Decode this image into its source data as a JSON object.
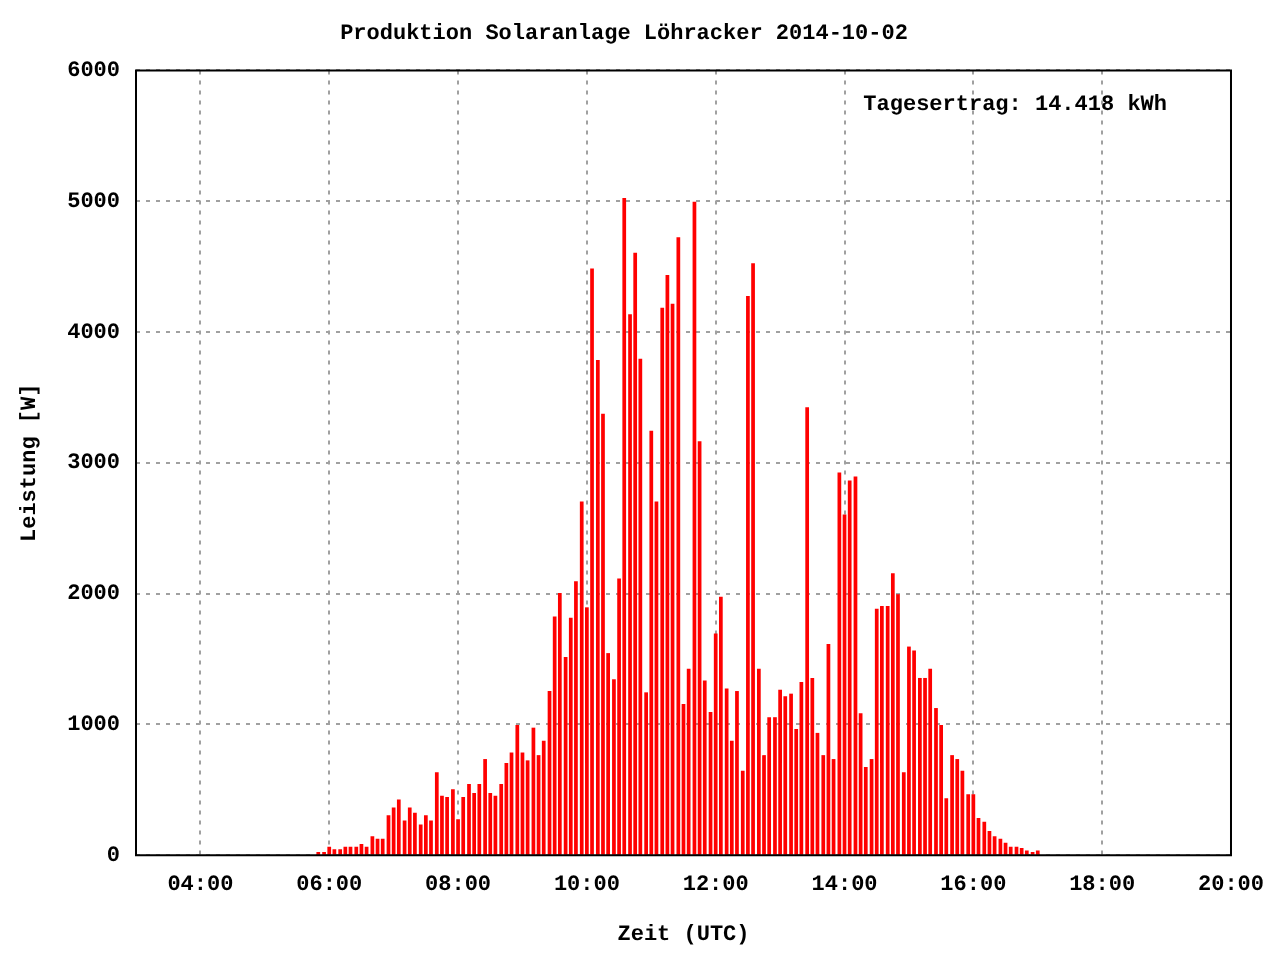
{
  "chart_data": {
    "type": "bar",
    "title": "Produktion Solaranlage Löhracker 2014-10-02",
    "xlabel": "Zeit (UTC)",
    "ylabel": "Leistung [W]",
    "annotations": [
      "Tagesertrag: 14.418 kWh"
    ],
    "x": [
      5.83,
      5.92,
      6.0,
      6.08,
      6.17,
      6.25,
      6.33,
      6.42,
      6.5,
      6.58,
      6.67,
      6.75,
      6.83,
      6.92,
      7.0,
      7.08,
      7.17,
      7.25,
      7.33,
      7.42,
      7.5,
      7.58,
      7.67,
      7.75,
      7.83,
      7.92,
      8.0,
      8.08,
      8.17,
      8.25,
      8.33,
      8.42,
      8.5,
      8.58,
      8.67,
      8.75,
      8.83,
      8.92,
      9.0,
      9.08,
      9.17,
      9.25,
      9.33,
      9.42,
      9.5,
      9.58,
      9.67,
      9.75,
      9.83,
      9.92,
      10.0,
      10.08,
      10.17,
      10.25,
      10.33,
      10.42,
      10.5,
      10.58,
      10.67,
      10.75,
      10.83,
      10.92,
      11.0,
      11.08,
      11.17,
      11.25,
      11.33,
      11.42,
      11.5,
      11.58,
      11.67,
      11.75,
      11.83,
      11.92,
      12.0,
      12.08,
      12.17,
      12.25,
      12.33,
      12.42,
      12.5,
      12.58,
      12.67,
      12.75,
      12.83,
      12.92,
      13.0,
      13.08,
      13.17,
      13.25,
      13.33,
      13.42,
      13.5,
      13.58,
      13.67,
      13.75,
      13.83,
      13.92,
      14.0,
      14.08,
      14.17,
      14.25,
      14.33,
      14.42,
      14.5,
      14.58,
      14.67,
      14.75,
      14.83,
      14.92,
      15.0,
      15.08,
      15.17,
      15.25,
      15.33,
      15.42,
      15.5,
      15.58,
      15.67,
      15.75,
      15.83,
      15.92,
      16.0,
      16.08,
      16.17,
      16.25,
      16.33,
      16.42,
      16.5,
      16.58,
      16.67,
      16.75,
      16.83,
      16.92,
      17.0
    ],
    "series": [
      {
        "color": "#ff0000",
        "values": [
          20,
          20,
          60,
          40,
          40,
          60,
          60,
          60,
          80,
          60,
          140,
          120,
          120,
          300,
          360,
          420,
          260,
          360,
          320,
          230,
          300,
          260,
          630,
          450,
          440,
          500,
          270,
          440,
          540,
          470,
          540,
          730,
          470,
          450,
          540,
          700,
          780,
          990,
          780,
          720,
          970,
          760,
          870,
          1250,
          1820,
          2000,
          1510,
          1810,
          2090,
          2700,
          1890,
          4480,
          3780,
          3370,
          1540,
          1340,
          2110,
          5020,
          4130,
          4600,
          3790,
          1240,
          3240,
          2700,
          4180,
          4430,
          4210,
          4720,
          1150,
          1420,
          4990,
          3160,
          1330,
          1090,
          1690,
          1970,
          1270,
          870,
          1250,
          640,
          4270,
          4520,
          1420,
          760,
          1050,
          1050,
          1260,
          1210,
          1230,
          960,
          1320,
          3420,
          1350,
          930,
          760,
          1610,
          730,
          2920,
          2600,
          2860,
          2890,
          1080,
          670,
          730,
          1880,
          1900,
          1900,
          2150,
          1990,
          630,
          1590,
          1560,
          1350,
          1350,
          1420,
          1120,
          990,
          430,
          760,
          730,
          640,
          460,
          460,
          280,
          250,
          180,
          140,
          120,
          90,
          60,
          60,
          50,
          30,
          20,
          30
        ]
      }
    ],
    "xlim": [
      3,
      20
    ],
    "xticks": [
      {
        "value": 4,
        "label": "04:00"
      },
      {
        "value": 6,
        "label": "06:00"
      },
      {
        "value": 8,
        "label": "08:00"
      },
      {
        "value": 10,
        "label": "10:00"
      },
      {
        "value": 12,
        "label": "12:00"
      },
      {
        "value": 14,
        "label": "14:00"
      },
      {
        "value": 16,
        "label": "16:00"
      },
      {
        "value": 18,
        "label": "18:00"
      },
      {
        "value": 20,
        "label": "20:00"
      }
    ],
    "ylim": [
      0,
      6000
    ],
    "yticks": [
      0,
      1000,
      2000,
      3000,
      4000,
      5000,
      6000
    ],
    "grid": true
  }
}
